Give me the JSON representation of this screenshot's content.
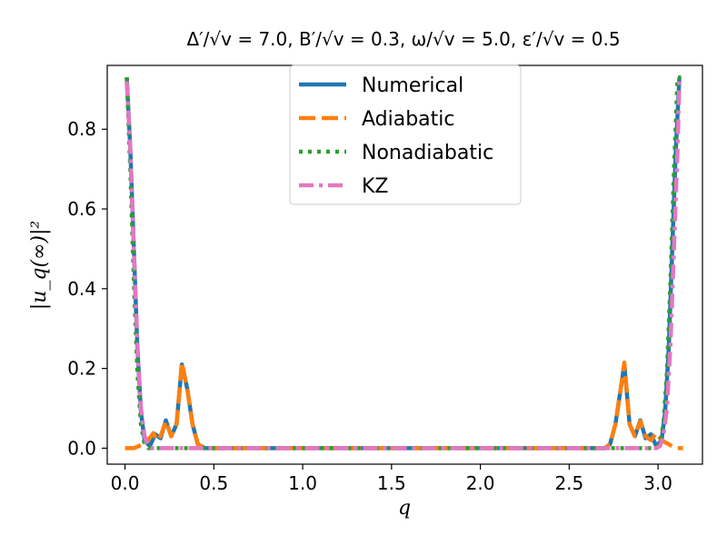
{
  "chart_data": {
    "type": "line",
    "title": "Δ′/√v = 7.0, B′/√v = 0.3, ω/√v = 5.0, ε′/√v = 0.5",
    "xlabel": "q",
    "ylabel": "|u_q(∞)|²",
    "xlim": [
      -0.1,
      3.25
    ],
    "ylim": [
      -0.04,
      0.96
    ],
    "xticks": [
      "0.0",
      "0.5",
      "1.0",
      "1.5",
      "2.0",
      "2.5",
      "3.0"
    ],
    "yticks": [
      "0.0",
      "0.2",
      "0.4",
      "0.6",
      "0.8"
    ],
    "grid": false,
    "legend_position": "upper center",
    "series": [
      {
        "name": "Numerical",
        "color": "#1f77b4",
        "style": "solid",
        "x": [
          0.01,
          0.03,
          0.05,
          0.07,
          0.09,
          0.11,
          0.14,
          0.17,
          0.2,
          0.23,
          0.26,
          0.29,
          0.32,
          0.35,
          0.38,
          0.41,
          0.45,
          0.5,
          1.0,
          1.5,
          2.0,
          2.5,
          2.7,
          2.73,
          2.76,
          2.79,
          2.81,
          2.84,
          2.87,
          2.9,
          2.93,
          2.96,
          2.99,
          3.02,
          3.04,
          3.06,
          3.08,
          3.1,
          3.12
        ],
        "y": [
          0.93,
          0.75,
          0.5,
          0.25,
          0.09,
          0.02,
          0.005,
          0.035,
          0.025,
          0.07,
          0.03,
          0.06,
          0.21,
          0.15,
          0.06,
          0.01,
          0.0,
          0.0,
          0.0,
          0.0,
          0.0,
          0.0,
          0.0,
          0.01,
          0.06,
          0.15,
          0.21,
          0.06,
          0.03,
          0.07,
          0.025,
          0.035,
          0.005,
          0.02,
          0.09,
          0.25,
          0.5,
          0.75,
          0.93
        ]
      },
      {
        "name": "Adiabatic",
        "color": "#ff7f0e",
        "style": "dashed",
        "x": [
          0.0,
          0.05,
          0.1,
          0.13,
          0.16,
          0.18,
          0.2,
          0.23,
          0.26,
          0.29,
          0.32,
          0.35,
          0.38,
          0.41,
          0.45,
          0.5,
          1.0,
          1.5,
          2.0,
          2.5,
          2.7,
          2.73,
          2.76,
          2.79,
          2.81,
          2.84,
          2.87,
          2.9,
          2.93,
          2.96,
          2.99,
          3.02,
          3.06,
          3.1,
          3.14
        ],
        "y": [
          0.0,
          0.0,
          0.01,
          0.02,
          0.038,
          0.02,
          0.03,
          0.068,
          0.03,
          0.06,
          0.215,
          0.15,
          0.06,
          0.01,
          0.0,
          0.0,
          0.0,
          0.0,
          0.0,
          0.0,
          0.0,
          0.01,
          0.06,
          0.15,
          0.215,
          0.06,
          0.03,
          0.068,
          0.03,
          0.02,
          0.038,
          0.02,
          0.01,
          0.0,
          0.0
        ]
      },
      {
        "name": "Nonadiabatic",
        "color": "#2ca02c",
        "style": "dotted",
        "x": [
          0.01,
          0.03,
          0.05,
          0.07,
          0.09,
          0.11,
          0.13,
          0.16,
          0.2,
          0.5,
          1.0,
          1.5,
          2.0,
          2.5,
          2.9,
          2.98,
          3.01,
          3.03,
          3.05,
          3.07,
          3.09,
          3.11,
          3.13
        ],
        "y": [
          0.93,
          0.7,
          0.42,
          0.19,
          0.06,
          0.01,
          0.0,
          0.0,
          0.0,
          0.0,
          0.0,
          0.0,
          0.0,
          0.0,
          0.0,
          0.0,
          0.01,
          0.06,
          0.19,
          0.42,
          0.7,
          0.93,
          0.93
        ]
      },
      {
        "name": "KZ",
        "color": "#e377c2",
        "style": "dashdot",
        "x": [
          0.01,
          0.03,
          0.05,
          0.07,
          0.09,
          0.11,
          0.13,
          0.15,
          0.2,
          0.5,
          1.0,
          1.5,
          2.0,
          2.5,
          2.9,
          2.99,
          3.01,
          3.03,
          3.05,
          3.07,
          3.09,
          3.11,
          3.12
        ],
        "y": [
          0.92,
          0.75,
          0.5,
          0.26,
          0.1,
          0.03,
          0.005,
          0.0,
          0.0,
          0.0,
          0.0,
          0.0,
          0.0,
          0.0,
          0.0,
          0.0,
          0.005,
          0.03,
          0.1,
          0.26,
          0.5,
          0.75,
          0.92
        ]
      }
    ]
  }
}
